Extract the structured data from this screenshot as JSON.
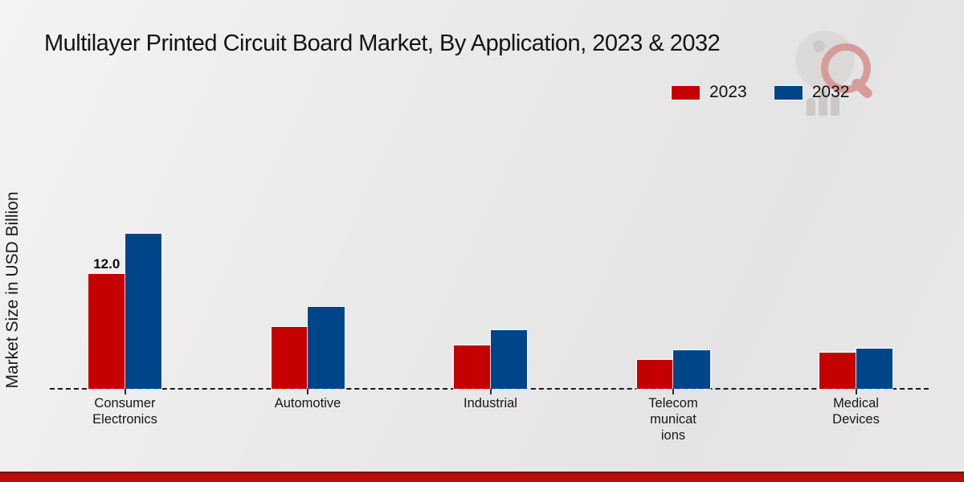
{
  "title": "Multilayer Printed Circuit Board Market, By Application, 2023 & 2032",
  "y_axis_label": "Market Size in USD Billion",
  "watermark_icon": "market-research-magnifier-logo",
  "footer_color": "#b60d09",
  "chart_data": {
    "type": "bar",
    "title": "Multilayer Printed Circuit Board Market, By Application, 2023 & 2032",
    "xlabel": "",
    "ylabel": "Market Size in USD Billion",
    "unit": "USD Billion",
    "categories": [
      "Consumer Electronics",
      "Automotive",
      "Industrial",
      "Telecommunications",
      "Medical Devices"
    ],
    "category_display_lines": [
      [
        "Consumer",
        "Electronics"
      ],
      [
        "Automotive"
      ],
      [
        "Industrial"
      ],
      [
        "Telecom",
        "municat",
        "ions"
      ],
      [
        "Medical",
        "Devices"
      ]
    ],
    "series": [
      {
        "name": "2023",
        "color": "#c40000",
        "values": [
          12.0,
          6.5,
          4.5,
          3.0,
          3.8
        ]
      },
      {
        "name": "2032",
        "color": "#004587",
        "values": [
          16.2,
          8.6,
          6.1,
          4.0,
          4.2
        ]
      }
    ],
    "bar_labels": [
      {
        "series_index": 0,
        "category_index": 0,
        "text": "12.0"
      }
    ],
    "ylim": [
      0,
      18
    ],
    "grid": false,
    "axis_style": "dashed-baseline-only",
    "legend_position": "top-right"
  }
}
